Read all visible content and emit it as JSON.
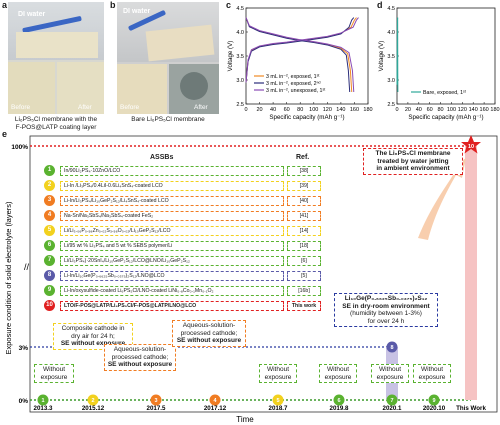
{
  "panels": {
    "a": {
      "label": "a",
      "water_label": "DI water",
      "before_label": "Before",
      "after_label": "After",
      "caption_line1": "Li₆PS₅Cl membrane with the",
      "caption_line2": "F-POS@LATP coating layer"
    },
    "b": {
      "label": "b",
      "water_label": "DI water",
      "before_label": "Before",
      "after_label": "After",
      "caption": "Bare Li₆PS₅Cl membrane"
    },
    "e_label": "e"
  },
  "colors": {
    "orange": "#f08a24",
    "navy": "#2b2d7a",
    "purple": "#8a4bb5",
    "teal": "#2fa89a",
    "green_dot": "#3a9a2a",
    "red": "#e02020",
    "blue_dot": "#2a3aa0",
    "c1": "#5ab230",
    "c2": "#f2d11e",
    "c3": "#f07c22",
    "c4": "#f07c22",
    "c5": "#f2d11e",
    "c6": "#5ab230",
    "c7": "#5ab230",
    "c8": "#5a5aa8",
    "c9": "#5ab230",
    "c10": "#e02020"
  },
  "chart_data": [
    {
      "panel": "c",
      "type": "line",
      "xlabel": "Specific capacity (mAh g⁻¹)",
      "ylabel": "Voltage (V)",
      "xlim": [
        0,
        180
      ],
      "ylim": [
        2.5,
        4.5
      ],
      "xticks": [
        "0",
        "20",
        "40",
        "60",
        "80",
        "100",
        "120",
        "140",
        "160",
        "180"
      ],
      "yticks": [
        "2.5",
        "3.0",
        "3.5",
        "4.0",
        "4.5"
      ],
      "series": [
        {
          "name": "3 mL in⁻², exposed, 1ˢᵗ",
          "color": "#f08a24",
          "charge_x": [
            0,
            3,
            8,
            20,
            40,
            60,
            80,
            100,
            120,
            140,
            155,
            160,
            163
          ],
          "charge_y": [
            2.95,
            3.4,
            3.62,
            3.7,
            3.75,
            3.78,
            3.82,
            3.86,
            3.9,
            3.97,
            4.1,
            4.25,
            4.3
          ],
          "discharge_x": [
            0,
            5,
            20,
            40,
            60,
            80,
            100,
            120,
            140,
            150,
            154,
            156
          ],
          "discharge_y": [
            4.3,
            4.12,
            4.02,
            3.95,
            3.88,
            3.83,
            3.79,
            3.74,
            3.66,
            3.55,
            3.2,
            2.75
          ]
        },
        {
          "name": "3 mL in⁻², exposed, 2ⁿᵈ",
          "color": "#2b2d7a",
          "charge_x": [
            0,
            3,
            8,
            20,
            40,
            60,
            80,
            100,
            120,
            140,
            152,
            156,
            159
          ],
          "charge_y": [
            2.95,
            3.38,
            3.6,
            3.69,
            3.74,
            3.77,
            3.81,
            3.85,
            3.89,
            3.96,
            4.1,
            4.25,
            4.3
          ],
          "discharge_x": [
            0,
            5,
            20,
            40,
            60,
            80,
            100,
            120,
            140,
            148,
            151,
            153
          ],
          "discharge_y": [
            4.3,
            4.11,
            4.01,
            3.94,
            3.87,
            3.82,
            3.78,
            3.73,
            3.64,
            3.52,
            3.2,
            2.75
          ]
        },
        {
          "name": "3 mL in⁻², unexposed, 1ˢᵗ",
          "color": "#8a4bb5",
          "charge_x": [
            0,
            3,
            8,
            20,
            40,
            60,
            80,
            100,
            120,
            140,
            158,
            163,
            166
          ],
          "charge_y": [
            2.95,
            3.42,
            3.63,
            3.71,
            3.76,
            3.79,
            3.83,
            3.87,
            3.91,
            3.98,
            4.1,
            4.25,
            4.3
          ],
          "discharge_x": [
            0,
            5,
            20,
            40,
            60,
            80,
            100,
            120,
            140,
            152,
            157,
            159
          ],
          "discharge_y": [
            4.3,
            4.13,
            4.03,
            3.96,
            3.89,
            3.84,
            3.8,
            3.75,
            3.68,
            3.57,
            3.2,
            2.75
          ]
        }
      ]
    },
    {
      "panel": "d",
      "type": "line",
      "xlabel": "Specific capacity (mAh g⁻¹)",
      "ylabel": "Voltage (V)",
      "xlim": [
        0,
        180
      ],
      "ylim": [
        2.5,
        4.5
      ],
      "xticks": [
        "0",
        "20",
        "40",
        "60",
        "80",
        "100",
        "120",
        "140",
        "160",
        "180"
      ],
      "yticks": [
        "2.5",
        "3.0",
        "3.5",
        "4.0",
        "4.5"
      ],
      "series": [
        {
          "name": "Bare, exposed, 1ˢᵗ",
          "color": "#2fa89a",
          "charge_x": [
            0,
            0.8,
            1.2
          ],
          "charge_y": [
            2.9,
            4.25,
            4.3
          ],
          "discharge_x": [
            1.2,
            1.4,
            1.6
          ],
          "discharge_y": [
            4.3,
            3.2,
            2.75
          ]
        }
      ]
    },
    {
      "panel": "e",
      "type": "scatter",
      "xlabel": "Time",
      "ylabel": "Exposure condition of solid electrolyte (layers)",
      "categories": [
        "2013.3",
        "2015.12",
        "2017.5",
        "2017.12",
        "2018.7",
        "2019.8",
        "2020.1",
        "2020.10",
        "This Work"
      ],
      "yticks": [
        "0%",
        "3%",
        "100%"
      ],
      "points": [
        {
          "id": "1",
          "time": "2013.3",
          "exposure": "0%"
        },
        {
          "id": "2",
          "time": "2015.12",
          "exposure": "0%"
        },
        {
          "id": "3",
          "time": "2017.5",
          "exposure": "0%"
        },
        {
          "id": "4",
          "time": "2017.12",
          "exposure": "0%"
        },
        {
          "id": "5",
          "time": "2018.7",
          "exposure": "0%"
        },
        {
          "id": "6",
          "time": "2019.8",
          "exposure": "0%"
        },
        {
          "id": "7",
          "time": "2020.1",
          "exposure": "0%"
        },
        {
          "id": "8",
          "time": "2020.1",
          "exposure": "3%"
        },
        {
          "id": "9",
          "time": "2020.10",
          "exposure": "0%"
        },
        {
          "id": "10",
          "time": "This Work",
          "exposure": "100%"
        }
      ],
      "annotations": [
        {
          "text": "Without exposure",
          "time": "2013.3"
        },
        {
          "text_line1": "Composite cathode in",
          "text_line2": "dry air for 24 h;",
          "text_line3": "SE without exposure",
          "time": "2015.12"
        },
        {
          "text_line1": "Aqueous-solution-",
          "text_line2": "processed cathode;",
          "text_line3": "SE without exposure",
          "time": "2017.5"
        },
        {
          "text_line1": "Aqueous-solution-",
          "text_line2": "processed cathode;",
          "text_line3": "SE without exposure",
          "time": "2017.12"
        },
        {
          "text": "Without exposure",
          "time": "2018.7"
        },
        {
          "text": "Without exposure",
          "time": "2019.8"
        },
        {
          "text": "Without exposure",
          "time": "2020.1"
        },
        {
          "text": "Without exposure",
          "time": "2020.10"
        },
        {
          "text_line1": "Li₁₀Ge(P₀.₆₆₂₅Sb₀.₀₃₇₅)₂S₁₂",
          "text_line2": "SE in dry-room environment",
          "text_line3": "(humidity between 1-3%)",
          "text_line4": "for over 24 h",
          "time": "2020.1"
        },
        {
          "text_line1": "The Li₆PS₅Cl membrane",
          "text_line2": "treated by water jetting",
          "text_line3": "in ambient environment",
          "time": "This Work"
        }
      ]
    }
  ],
  "table": {
    "header_assb": "ASSBs",
    "header_ref": "Ref.",
    "rows": [
      {
        "n": "1",
        "assb": "In/90Li₂PS₄·10ZnO/LCO",
        "ref": "[38]"
      },
      {
        "n": "2",
        "assb": "Li-In /Li₃PS₄/0.4LiI-0.6Li₄SnS₄-coated LCO",
        "ref": "[39]"
      },
      {
        "n": "3",
        "assb": "Li-In/Li₃PS₄/Li₁₀GeP₂S₁₂/Li₄SnS₄-coated LCO",
        "ref": "[40]"
      },
      {
        "n": "4",
        "assb": "Na-Sn/Na₃SbS₄/Na₃SbS₄-coated FeS₂",
        "ref": "[41]"
      },
      {
        "n": "5",
        "assb": "Li/Li₃.₀₆P₀.₉₈Zn₀.₀₂S₃.₉₈O₀.₀₂/Li₁₀GeP₂S₁₂/LCO",
        "ref": "[14]"
      },
      {
        "n": "6",
        "assb": "Li/95 wt % Li₃PS₄ and 5 wt % SEBS polymer/Li",
        "ref": "[18]"
      },
      {
        "n": "7",
        "assb": "Li/Li₃PS₄)·20SnI₄/Li₁₀GeP₂S₁₂/LCO@LNO/Li₁₀GeP₂S₁₂",
        "ref": "[6]"
      },
      {
        "n": "8",
        "assb": "Li-In/Li₁₀Ge(P₀.₆₆₂₅Sb₀.₀₃₇₅)₂S₁₂/LNO@LCO",
        "ref": "[5]"
      },
      {
        "n": "9",
        "assb": "Li-In/oxysulfide-coated Li₆PS₅Cl/LNO-coated LiNi₀.₈Co₀.₁Mn₀.₁O₂",
        "ref": "[16b]"
      },
      {
        "n": "10",
        "assb": "LTO/F-POS@LATP/Li₆PS₅Cl/F-POS@LATP/LNO@LCO",
        "ref": "This work"
      }
    ]
  }
}
